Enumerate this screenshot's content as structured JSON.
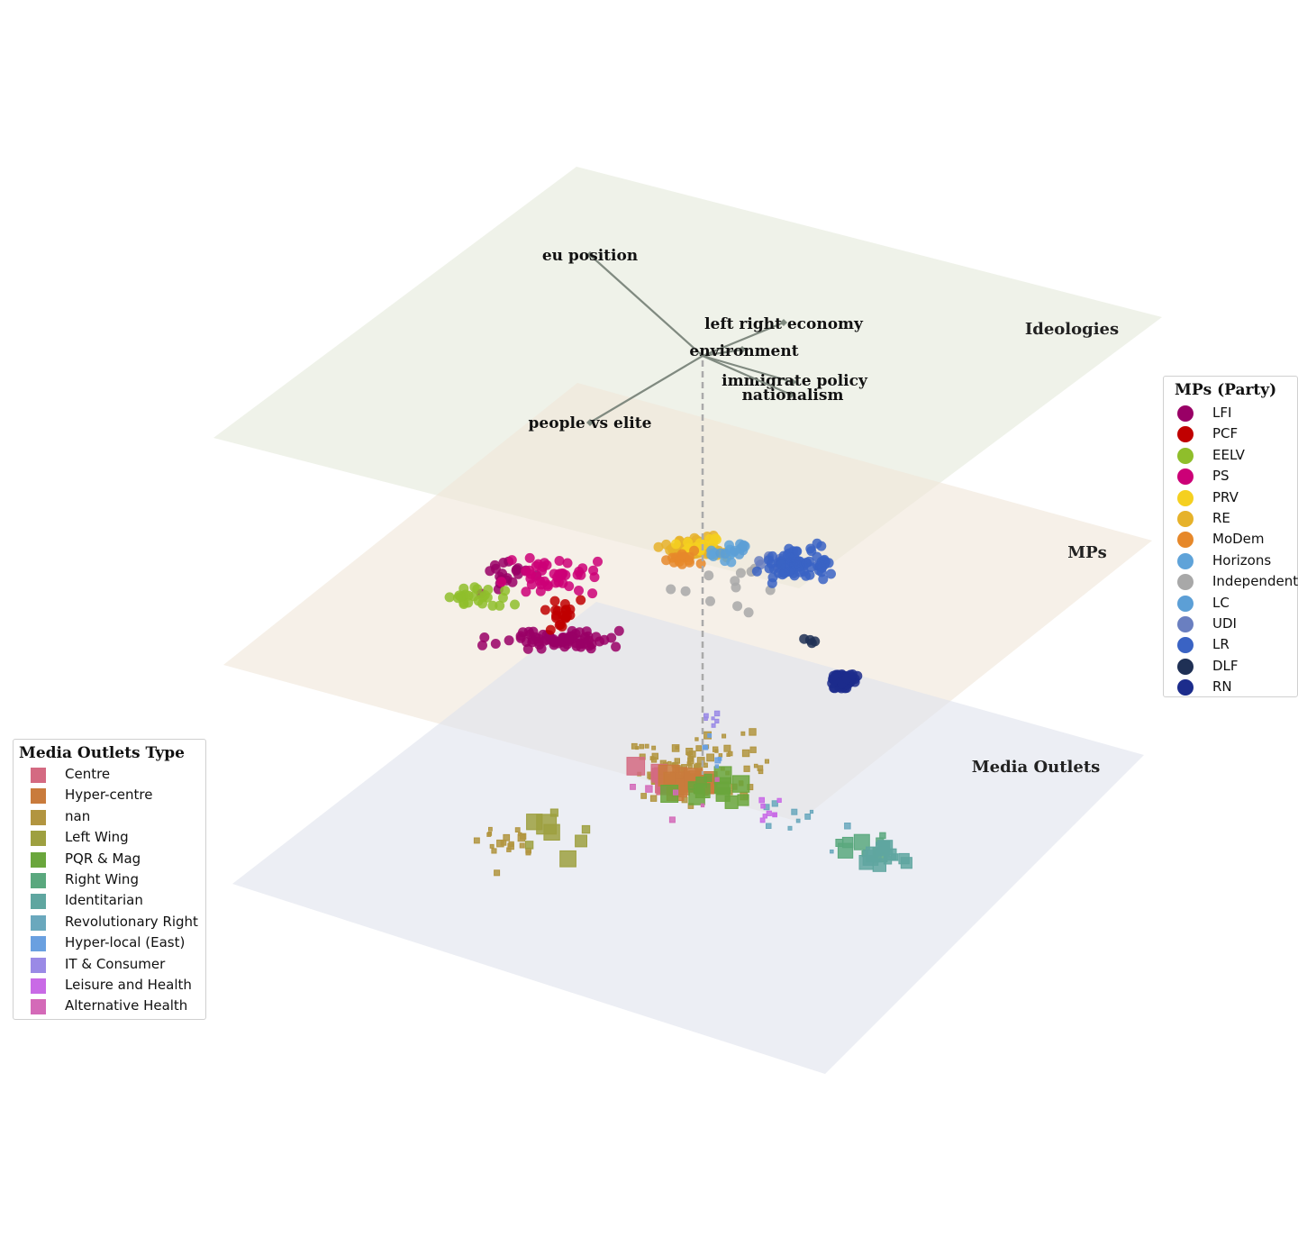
{
  "chart_data": {
    "type": "scatter",
    "subtype": "3d-layered-scatter",
    "layers": [
      {
        "name": "Ideologies",
        "color": "#e4eadb"
      },
      {
        "name": "MPs",
        "color": "#f0e6d8"
      },
      {
        "name": "Media Outlets",
        "color": "#dfe3ec"
      }
    ],
    "ideology_axes": [
      {
        "label": "eu position"
      },
      {
        "label": "left right economy"
      },
      {
        "label": "environment"
      },
      {
        "label": "immigrate policy"
      },
      {
        "label": "nationalism"
      },
      {
        "label": "people vs elite"
      }
    ],
    "mps_legend": {
      "title": "MPs (Party)",
      "items": [
        {
          "label": "LFI",
          "color": "#990066"
        },
        {
          "label": "PCF",
          "color": "#c00000"
        },
        {
          "label": "EELV",
          "color": "#8fbe2b"
        },
        {
          "label": "PS",
          "color": "#cc0077"
        },
        {
          "label": "PRV",
          "color": "#f5d020"
        },
        {
          "label": "RE",
          "color": "#e6b22a"
        },
        {
          "label": "MoDem",
          "color": "#e6882a"
        },
        {
          "label": "Horizons",
          "color": "#5fa3d9"
        },
        {
          "label": "Independent",
          "color": "#a8a8a8"
        },
        {
          "label": "LC",
          "color": "#5c9fd6"
        },
        {
          "label": "UDI",
          "color": "#6a7fc0"
        },
        {
          "label": "LR",
          "color": "#3a63c4"
        },
        {
          "label": "DLF",
          "color": "#1f3055"
        },
        {
          "label": "RN",
          "color": "#1c2c8c"
        }
      ]
    },
    "media_legend": {
      "title": "Media Outlets Type",
      "items": [
        {
          "label": "Centre",
          "color": "#d46a82"
        },
        {
          "label": "Hyper-centre",
          "color": "#c97b3c"
        },
        {
          "label": "nan",
          "color": "#b29540"
        },
        {
          "label": "Left Wing",
          "color": "#9ea040"
        },
        {
          "label": "PQR & Mag",
          "color": "#6aa63c"
        },
        {
          "label": "Right Wing",
          "color": "#5aa87e"
        },
        {
          "label": "Identitarian",
          "color": "#5fa6a0"
        },
        {
          "label": "Revolutionary Right",
          "color": "#6aa8bd"
        },
        {
          "label": "Hyper-local (East)",
          "color": "#6aa0e0"
        },
        {
          "label": "IT & Consumer",
          "color": "#9a8ae6"
        },
        {
          "label": "Leisure and Health",
          "color": "#c96ae6"
        },
        {
          "label": "Alternative Health",
          "color": "#d46ab8"
        }
      ]
    }
  }
}
